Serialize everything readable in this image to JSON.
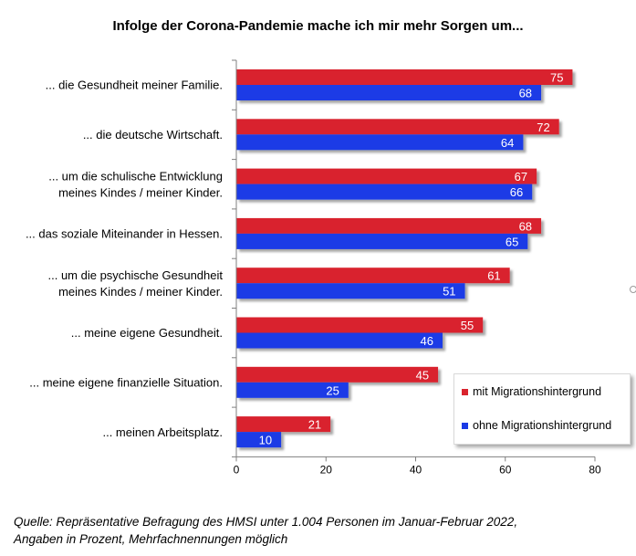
{
  "chart_data": {
    "type": "bar",
    "orientation": "horizontal",
    "title": "Infolge der Corona-Pandemie mache ich mir mehr Sorgen um...",
    "categories": [
      [
        "... die Gesundheit meiner Familie."
      ],
      [
        "... die deutsche Wirtschaft."
      ],
      [
        "... um die schulische Entwicklung",
        "meines Kindes / meiner Kinder."
      ],
      [
        "... das soziale Miteinander in Hessen."
      ],
      [
        "... um die psychische Gesundheit",
        "meines Kindes / meiner Kinder."
      ],
      [
        "... meine eigene Gesundheit."
      ],
      [
        "... meine eigene finanzielle Situation."
      ],
      [
        "... meinen Arbeitsplatz."
      ]
    ],
    "series": [
      {
        "name": "mit Migrationshintergrund",
        "color": "#d9232d",
        "values": [
          75,
          72,
          67,
          68,
          61,
          55,
          45,
          21
        ]
      },
      {
        "name": "ohne Migrationshintergrund",
        "color": "#1a3ae6",
        "values": [
          68,
          64,
          66,
          65,
          51,
          46,
          25,
          10
        ]
      }
    ],
    "xlim": [
      0,
      80
    ],
    "xticks": [
      0,
      20,
      40,
      60,
      80
    ],
    "grid": false,
    "data_labels": true,
    "legend_position": "bottom-right"
  },
  "footnote": [
    "Quelle: Repräsentative Befragung des HMSI unter 1.004 Personen im Januar-Februar 2022,",
    "Angaben in Prozent, Mehrfachnennungen möglich"
  ]
}
